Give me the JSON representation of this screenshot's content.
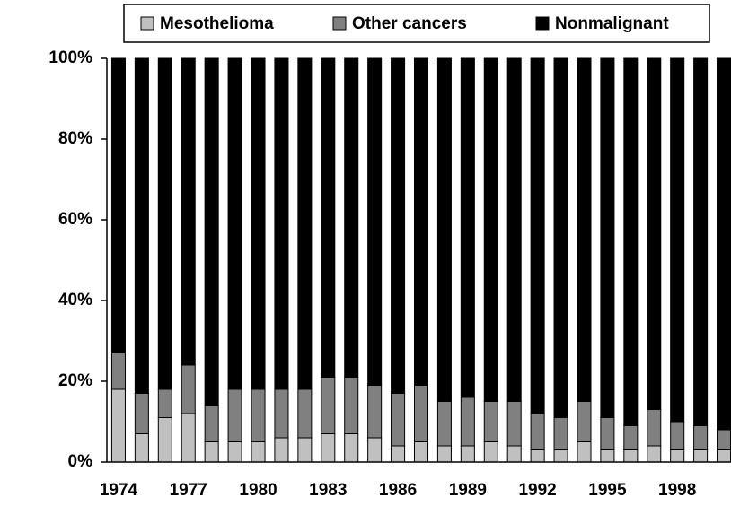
{
  "chart_data": {
    "type": "bar",
    "stacked": true,
    "categories": [
      "1974",
      null,
      null,
      "1977",
      null,
      null,
      "1980",
      null,
      null,
      "1983",
      null,
      null,
      "1986",
      null,
      null,
      "1989",
      null,
      null,
      "1992",
      null,
      null,
      "1995",
      null,
      null,
      "1998",
      null,
      null
    ],
    "series": [
      {
        "name": "Mesothelioma",
        "color": "#c0c0c0",
        "values": [
          18,
          7,
          11,
          12,
          5,
          5,
          5,
          6,
          6,
          7,
          7,
          6,
          4,
          5,
          4,
          4,
          5,
          4,
          3,
          3,
          5,
          3,
          3,
          4,
          3,
          3,
          3
        ]
      },
      {
        "name": "Other cancers",
        "color": "#808080",
        "values": [
          9,
          10,
          7,
          12,
          9,
          13,
          13,
          12,
          12,
          14,
          14,
          13,
          13,
          14,
          11,
          12,
          10,
          11,
          9,
          8,
          10,
          8,
          6,
          9,
          7,
          6,
          5
        ]
      },
      {
        "name": "Nonmalignant",
        "color": "#000000",
        "values": [
          73,
          83,
          82,
          76,
          86,
          82,
          82,
          82,
          82,
          79,
          79,
          81,
          83,
          81,
          85,
          84,
          85,
          85,
          88,
          89,
          85,
          89,
          91,
          87,
          90,
          91,
          92
        ]
      }
    ],
    "ylim": [
      0,
      100
    ],
    "yticks": [
      {
        "value": 0,
        "label": "0%"
      },
      {
        "value": 20,
        "label": "20%"
      },
      {
        "value": 40,
        "label": "40%"
      },
      {
        "value": 60,
        "label": "60%"
      },
      {
        "value": 80,
        "label": "80%"
      },
      {
        "value": 100,
        "label": "100%"
      }
    ],
    "legend": "top"
  }
}
